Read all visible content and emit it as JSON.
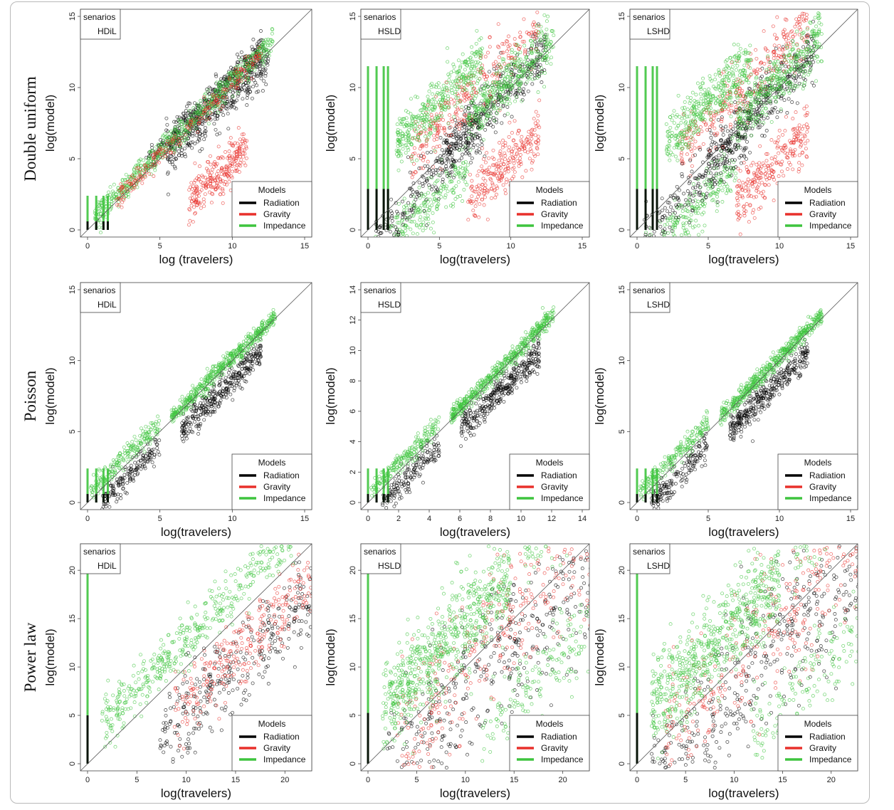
{
  "legend": {
    "title": "Models",
    "entries": [
      {
        "label": "Radiation",
        "color": "#000000"
      },
      {
        "label": "Gravity",
        "color": "#e8302b"
      },
      {
        "label": "Impedance",
        "color": "#3ec43e"
      }
    ]
  },
  "scenario_label": "senarios",
  "row_labels": [
    "Double uniform",
    "Poisson",
    "Power law"
  ],
  "chart_data": [
    {
      "type": "scatter",
      "row": "Double uniform",
      "scenario": "HDiL",
      "xlabel": "log (travelers)",
      "ylabel": "log(model)",
      "xlim": [
        0,
        15
      ],
      "ylim": [
        0,
        15
      ],
      "xticks": [
        0,
        5,
        10,
        15
      ],
      "yticks": [
        0,
        5,
        10,
        15
      ],
      "series": [
        {
          "name": "Radiation"
        },
        {
          "name": "Gravity"
        },
        {
          "name": "Impedance"
        }
      ]
    },
    {
      "type": "scatter",
      "row": "Double uniform",
      "scenario": "HSLD",
      "xlabel": "log(travelers)",
      "ylabel": "log(model)",
      "xlim": [
        0,
        15
      ],
      "ylim": [
        0,
        15
      ],
      "xticks": [
        0,
        5,
        10,
        15
      ],
      "yticks": [
        0,
        5,
        10,
        15
      ],
      "series": [
        {
          "name": "Radiation"
        },
        {
          "name": "Gravity"
        },
        {
          "name": "Impedance"
        }
      ]
    },
    {
      "type": "scatter",
      "row": "Double uniform",
      "scenario": "LSHD",
      "xlabel": "log(travelers)",
      "ylabel": "log(model)",
      "xlim": [
        0,
        15
      ],
      "ylim": [
        0,
        15
      ],
      "xticks": [
        0,
        5,
        10,
        15
      ],
      "yticks": [
        0,
        5,
        10,
        15
      ],
      "series": [
        {
          "name": "Radiation"
        },
        {
          "name": "Gravity"
        },
        {
          "name": "Impedance"
        }
      ]
    },
    {
      "type": "scatter",
      "row": "Poisson",
      "scenario": "HDiL",
      "xlabel": "log(travelers)",
      "ylabel": "log(model)",
      "xlim": [
        0,
        15
      ],
      "ylim": [
        0,
        15
      ],
      "xticks": [
        0,
        5,
        10,
        15
      ],
      "yticks": [
        0,
        5,
        10,
        15
      ],
      "series": [
        {
          "name": "Radiation"
        },
        {
          "name": "Gravity"
        },
        {
          "name": "Impedance"
        }
      ]
    },
    {
      "type": "scatter",
      "row": "Poisson",
      "scenario": "HSLD",
      "xlabel": "log(travelers)",
      "ylabel": "log(model)",
      "xlim": [
        0,
        14
      ],
      "ylim": [
        0,
        14
      ],
      "xticks": [
        0,
        2,
        4,
        6,
        8,
        10,
        12,
        14
      ],
      "yticks": [
        0,
        2,
        4,
        6,
        8,
        10,
        12,
        14
      ],
      "series": [
        {
          "name": "Radiation"
        },
        {
          "name": "Gravity"
        },
        {
          "name": "Impedance"
        }
      ]
    },
    {
      "type": "scatter",
      "row": "Poisson",
      "scenario": "LSHD",
      "xlabel": "log(travelers)",
      "ylabel": "log(model)",
      "xlim": [
        0,
        15
      ],
      "ylim": [
        0,
        15
      ],
      "xticks": [
        0,
        5,
        10,
        15
      ],
      "yticks": [
        0,
        5,
        10,
        15
      ],
      "series": [
        {
          "name": "Radiation"
        },
        {
          "name": "Gravity"
        },
        {
          "name": "Impedance"
        }
      ]
    },
    {
      "type": "scatter",
      "row": "Power law",
      "scenario": "HDiL",
      "xlabel": "log(travelers)",
      "ylabel": "log(model)",
      "xlim": [
        0,
        22
      ],
      "ylim": [
        0,
        22
      ],
      "xticks": [
        0,
        5,
        10,
        15,
        20
      ],
      "yticks": [
        0,
        5,
        10,
        15,
        20
      ],
      "series": [
        {
          "name": "Radiation"
        },
        {
          "name": "Gravity"
        },
        {
          "name": "Impedance"
        }
      ]
    },
    {
      "type": "scatter",
      "row": "Power law",
      "scenario": "HSLD",
      "xlabel": "log(travelers)",
      "ylabel": "log(model)",
      "xlim": [
        0,
        22
      ],
      "ylim": [
        0,
        22
      ],
      "xticks": [
        0,
        5,
        10,
        15,
        20
      ],
      "yticks": [
        0,
        5,
        10,
        15,
        20
      ],
      "series": [
        {
          "name": "Radiation"
        },
        {
          "name": "Gravity"
        },
        {
          "name": "Impedance"
        }
      ]
    },
    {
      "type": "scatter",
      "row": "Power law",
      "scenario": "LSHD",
      "xlabel": "log(travelers)",
      "ylabel": "log(model)",
      "xlim": [
        0,
        22
      ],
      "ylim": [
        0,
        22
      ],
      "xticks": [
        0,
        5,
        10,
        15,
        20
      ],
      "yticks": [
        0,
        5,
        10,
        15,
        20
      ],
      "series": [
        {
          "name": "Radiation"
        },
        {
          "name": "Gravity"
        },
        {
          "name": "Impedance"
        }
      ]
    }
  ]
}
